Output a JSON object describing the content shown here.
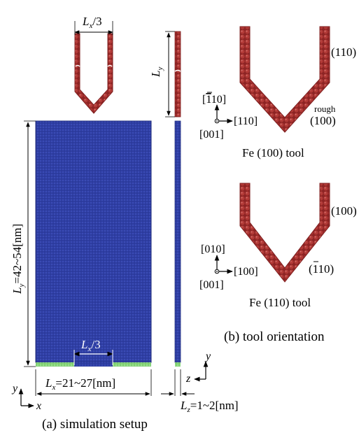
{
  "colors": {
    "substrate": "#2b3a9c",
    "substrate_dark": "#1f2b7a",
    "tool": "#a5302f",
    "tool_dark": "#7e1f1f",
    "fixed_layer": "#86d67a",
    "line": "#000000"
  },
  "panel_a": {
    "lx_third": "L",
    "lx_third_sub": "x",
    "lx_third_tail": "/3",
    "ly_small": "L",
    "ly_small_sub": "y",
    "ly_main": "L",
    "ly_main_sub": "y",
    "ly_main_range": "=42~54[nm]",
    "lx_bottom_third": "L",
    "lx_bottom_third_sub": "x",
    "lx_bottom_third_tail": "/3",
    "lx_main": "L",
    "lx_main_sub": "x",
    "lx_main_range": "=21~27[nm]",
    "lz_main": "L",
    "lz_main_sub": "z",
    "lz_main_range": "=1~2[nm]",
    "axis_y": "y",
    "axis_x": "x",
    "axis_y2": "y",
    "axis_z": "z",
    "caption": "(a) simulation setup"
  },
  "panel_b": {
    "tool1": {
      "dir_up_prefix": "[",
      "dir_up_bar": "1",
      "dir_up_rest": "10]",
      "dir_right": "[110]",
      "dir_out": "[001]",
      "right_face": "(110)",
      "rough": "rough",
      "bottom_face": "(100)",
      "label": "Fe (100) tool"
    },
    "tool2": {
      "dir_up": "[010]",
      "dir_right": "[100]",
      "dir_out": "[001]",
      "right_face": "(100)",
      "bottom_face_prefix": "(",
      "bottom_face_bar": "1",
      "bottom_face_rest": "10)",
      "label": "Fe (110) tool"
    },
    "caption": "(b) tool orientation"
  }
}
